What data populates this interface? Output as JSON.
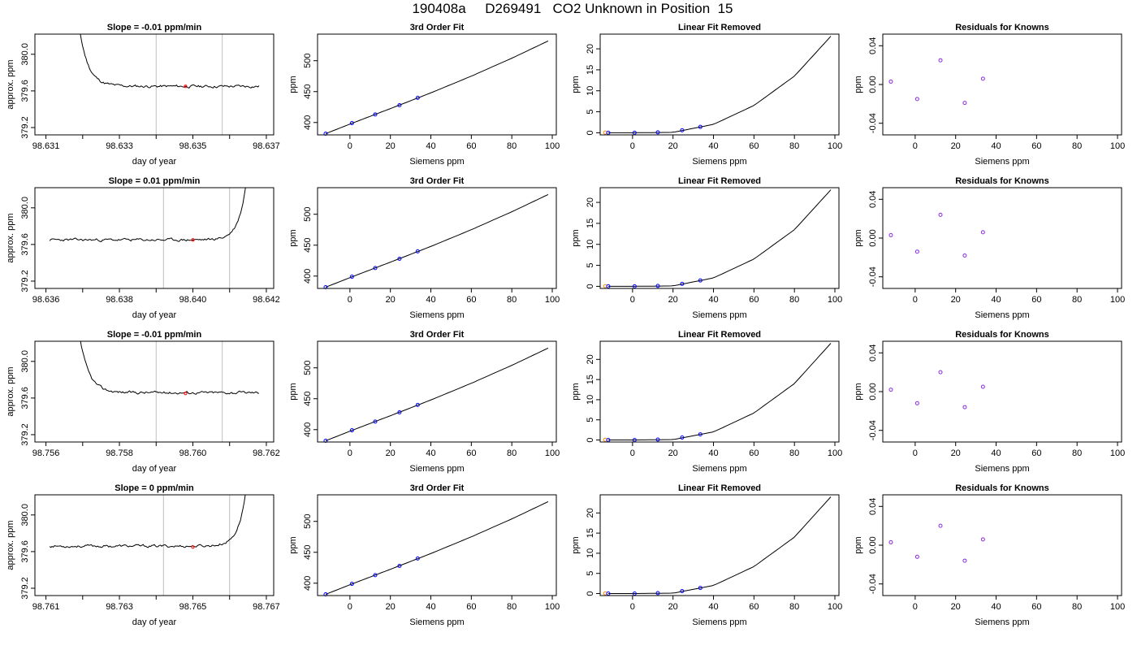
{
  "title": "190408a     D269491   CO2 Unknown in Position  15",
  "colors": {
    "line": "#000000",
    "known_point": "#0000ff",
    "residual_point": "#8a2be2",
    "unknown_point": "#ff0000",
    "standard_point": "#ff8c00",
    "vline": "#bebebe"
  },
  "chart_data": [
    {
      "type": "line",
      "row": 0,
      "title": "Slope =  -0.01  ppm/min",
      "xlabel": "day of year",
      "ylabel": "approx. ppm",
      "xlim": [
        98.6307,
        98.6372
      ],
      "ylim": [
        379.12,
        380.22
      ],
      "xticks": [
        98.631,
        98.632,
        98.633,
        98.634,
        98.635,
        98.636,
        98.637
      ],
      "xtick_labels": [
        "98.631",
        "",
        "98.633",
        "",
        "98.635",
        "",
        "98.637"
      ],
      "yticks": [
        379.2,
        379.6,
        380.0
      ],
      "ytick_labels": [
        "379.2",
        "379.6",
        "380.0"
      ],
      "vlines": [
        98.634,
        98.6358
      ],
      "unknown_point": {
        "x": 98.6348,
        "y": 379.65
      },
      "trace": {
        "start": 98.6315,
        "end": 98.6368,
        "spike": "start",
        "baseline": 379.65,
        "noise": 0.012,
        "seed": 11
      }
    },
    {
      "type": "scatter",
      "row": 0,
      "title": "3rd Order Fit",
      "xlabel": "Siemens ppm",
      "ylabel": "ppm",
      "xlim": [
        -16,
        102
      ],
      "ylim": [
        380,
        543
      ],
      "xticks": [
        0,
        20,
        40,
        60,
        80,
        100
      ],
      "yticks": [
        400,
        450,
        500
      ],
      "knowns": {
        "x": [
          -12,
          1,
          12.5,
          24.5,
          33.5
        ],
        "y": [
          382,
          399,
          413,
          428,
          440
        ]
      },
      "fit_curve": {
        "x": [
          -12,
          0,
          20,
          40,
          60,
          80,
          98
        ],
        "y": [
          382,
          397.5,
          422.5,
          448,
          475,
          504,
          532
        ]
      }
    },
    {
      "type": "scatter",
      "row": 0,
      "title": "Linear Fit Removed",
      "xlabel": "Siemens ppm",
      "ylabel": "ppm",
      "xlim": [
        -16,
        102
      ],
      "ylim": [
        -0.5,
        23.5
      ],
      "xticks": [
        0,
        20,
        40,
        60,
        80,
        100
      ],
      "yticks": [
        0,
        5,
        10,
        15,
        20
      ],
      "knowns": {
        "x": [
          -12,
          1,
          12.5,
          24.5,
          33.5
        ],
        "y": [
          0,
          0,
          0.1,
          0.6,
          1.4
        ]
      },
      "standard": {
        "x": -13.5,
        "y": 0.05
      },
      "fit_curve": {
        "x": [
          -12,
          0,
          20,
          40,
          60,
          80,
          98
        ],
        "y": [
          0,
          0,
          0.1,
          2,
          6.5,
          13.5,
          23
        ]
      }
    },
    {
      "type": "scatter",
      "row": 0,
      "title": "Residuals for Knowns",
      "xlabel": "Siemens ppm",
      "ylabel": "ppm",
      "xlim": [
        -16,
        102
      ],
      "ylim": [
        -0.052,
        0.052
      ],
      "xticks": [
        0,
        20,
        40,
        60,
        80,
        100
      ],
      "yticks": [
        -0.04,
        0,
        0.04
      ],
      "ytick_labels": [
        "-0.04",
        "0.00",
        "0.04"
      ],
      "knowns": {
        "x": [
          -12,
          1,
          12.5,
          24.5,
          33.5
        ],
        "y": [
          0.003,
          -0.015,
          0.025,
          -0.019,
          0.006
        ]
      }
    },
    {
      "type": "line",
      "row": 1,
      "title": "Slope =  0.01  ppm/min",
      "xlabel": "day of year",
      "ylabel": "approx. ppm",
      "xlim": [
        98.6357,
        98.6422
      ],
      "ylim": [
        379.12,
        380.22
      ],
      "xticks": [
        98.636,
        98.637,
        98.638,
        98.639,
        98.64,
        98.641,
        98.642
      ],
      "xtick_labels": [
        "98.636",
        "",
        "98.638",
        "",
        "98.640",
        "",
        "98.642"
      ],
      "yticks": [
        379.2,
        379.6,
        380.0
      ],
      "ytick_labels": [
        "379.2",
        "379.6",
        "380.0"
      ],
      "vlines": [
        98.6392,
        98.641
      ],
      "unknown_point": {
        "x": 98.64,
        "y": 379.65
      },
      "trace": {
        "start": 98.6361,
        "end": 98.6418,
        "spike": "end",
        "baseline": 379.65,
        "noise": 0.012,
        "seed": 23
      }
    },
    {
      "type": "scatter",
      "row": 1,
      "title": "3rd Order Fit",
      "xlabel": "Siemens ppm",
      "ylabel": "ppm",
      "xlim": [
        -16,
        102
      ],
      "ylim": [
        380,
        543
      ],
      "xticks": [
        0,
        20,
        40,
        60,
        80,
        100
      ],
      "yticks": [
        400,
        450,
        500
      ],
      "knowns": {
        "x": [
          -12,
          1,
          12.5,
          24.5,
          33.5
        ],
        "y": [
          382,
          399,
          413,
          428,
          440
        ]
      },
      "fit_curve": {
        "x": [
          -12,
          0,
          20,
          40,
          60,
          80,
          98
        ],
        "y": [
          382,
          397.5,
          422.5,
          448,
          475,
          504,
          532
        ]
      }
    },
    {
      "type": "scatter",
      "row": 1,
      "title": "Linear Fit Removed",
      "xlabel": "Siemens ppm",
      "ylabel": "ppm",
      "xlim": [
        -16,
        102
      ],
      "ylim": [
        -0.5,
        23.5
      ],
      "xticks": [
        0,
        20,
        40,
        60,
        80,
        100
      ],
      "yticks": [
        0,
        5,
        10,
        15,
        20
      ],
      "knowns": {
        "x": [
          -12,
          1,
          12.5,
          24.5,
          33.5
        ],
        "y": [
          0,
          0,
          0.1,
          0.6,
          1.4
        ]
      },
      "standard": {
        "x": -13.5,
        "y": 0.05
      },
      "fit_curve": {
        "x": [
          -12,
          0,
          20,
          40,
          60,
          80,
          98
        ],
        "y": [
          0,
          0,
          0.1,
          2,
          6.5,
          13.5,
          23
        ]
      }
    },
    {
      "type": "scatter",
      "row": 1,
      "title": "Residuals for Knowns",
      "xlabel": "Siemens ppm",
      "ylabel": "ppm",
      "xlim": [
        -16,
        102
      ],
      "ylim": [
        -0.052,
        0.052
      ],
      "xticks": [
        0,
        20,
        40,
        60,
        80,
        100
      ],
      "yticks": [
        -0.04,
        0,
        0.04
      ],
      "ytick_labels": [
        "-0.04",
        "0.00",
        "0.04"
      ],
      "knowns": {
        "x": [
          -12,
          1,
          12.5,
          24.5,
          33.5
        ],
        "y": [
          0.003,
          -0.014,
          0.024,
          -0.018,
          0.006
        ]
      }
    },
    {
      "type": "line",
      "row": 2,
      "title": "Slope =  -0.01  ppm/min",
      "xlabel": "day of year",
      "ylabel": "approx. ppm",
      "xlim": [
        98.7557,
        98.7622
      ],
      "ylim": [
        379.12,
        380.22
      ],
      "xticks": [
        98.756,
        98.757,
        98.758,
        98.759,
        98.76,
        98.761,
        98.762
      ],
      "xtick_labels": [
        "98.756",
        "",
        "98.758",
        "",
        "98.760",
        "",
        "98.762"
      ],
      "yticks": [
        379.2,
        379.6,
        380.0
      ],
      "ytick_labels": [
        "379.2",
        "379.6",
        "380.0"
      ],
      "vlines": [
        98.759,
        98.7608
      ],
      "unknown_point": {
        "x": 98.7598,
        "y": 379.65
      },
      "trace": {
        "start": 98.7565,
        "end": 98.7618,
        "spike": "start",
        "baseline": 379.66,
        "noise": 0.012,
        "seed": 37
      }
    },
    {
      "type": "scatter",
      "row": 2,
      "title": "3rd Order Fit",
      "xlabel": "Siemens ppm",
      "ylabel": "ppm",
      "xlim": [
        -16,
        102
      ],
      "ylim": [
        380,
        543
      ],
      "xticks": [
        0,
        20,
        40,
        60,
        80,
        100
      ],
      "yticks": [
        400,
        450,
        500
      ],
      "knowns": {
        "x": [
          -12,
          1,
          12.5,
          24.5,
          33.5
        ],
        "y": [
          382,
          399,
          413,
          428,
          440
        ]
      },
      "fit_curve": {
        "x": [
          -12,
          0,
          20,
          40,
          60,
          80,
          98
        ],
        "y": [
          382,
          397.5,
          422.5,
          448,
          475,
          504,
          532
        ]
      }
    },
    {
      "type": "scatter",
      "row": 2,
      "title": "Linear Fit Removed",
      "xlabel": "Siemens ppm",
      "ylabel": "ppm",
      "xlim": [
        -16,
        102
      ],
      "ylim": [
        -0.5,
        24.5
      ],
      "xticks": [
        0,
        20,
        40,
        60,
        80,
        100
      ],
      "yticks": [
        0,
        5,
        10,
        15,
        20
      ],
      "knowns": {
        "x": [
          -12,
          1,
          12.5,
          24.5,
          33.5
        ],
        "y": [
          0,
          0,
          0.1,
          0.6,
          1.4
        ]
      },
      "standard": {
        "x": -13.5,
        "y": 0.05
      },
      "fit_curve": {
        "x": [
          -12,
          0,
          20,
          40,
          60,
          80,
          98
        ],
        "y": [
          0,
          0,
          0.1,
          2,
          6.7,
          14,
          24
        ]
      }
    },
    {
      "type": "scatter",
      "row": 2,
      "title": "Residuals for Knowns",
      "xlabel": "Siemens ppm",
      "ylabel": "ppm",
      "xlim": [
        -16,
        102
      ],
      "ylim": [
        -0.052,
        0.052
      ],
      "xticks": [
        0,
        20,
        40,
        60,
        80,
        100
      ],
      "yticks": [
        -0.04,
        0,
        0.04
      ],
      "ytick_labels": [
        "-0.04",
        "0.00",
        "0.04"
      ],
      "knowns": {
        "x": [
          -12,
          1,
          12.5,
          24.5,
          33.5
        ],
        "y": [
          0.002,
          -0.012,
          0.02,
          -0.016,
          0.005
        ]
      }
    },
    {
      "type": "line",
      "row": 3,
      "title": "Slope =  0  ppm/min",
      "xlabel": "day of year",
      "ylabel": "approx. ppm",
      "xlim": [
        98.7607,
        98.7672
      ],
      "ylim": [
        379.12,
        380.22
      ],
      "xticks": [
        98.761,
        98.762,
        98.763,
        98.764,
        98.765,
        98.766,
        98.767
      ],
      "xtick_labels": [
        "98.761",
        "",
        "98.763",
        "",
        "98.765",
        "",
        "98.767"
      ],
      "yticks": [
        379.2,
        379.6,
        380.0
      ],
      "ytick_labels": [
        "379.2",
        "379.6",
        "380.0"
      ],
      "vlines": [
        98.7642,
        98.766
      ],
      "unknown_point": {
        "x": 98.765,
        "y": 379.65
      },
      "trace": {
        "start": 98.7611,
        "end": 98.7668,
        "spike": "end",
        "baseline": 379.66,
        "noise": 0.012,
        "seed": 53
      }
    },
    {
      "type": "scatter",
      "row": 3,
      "title": "3rd Order Fit",
      "xlabel": "Siemens ppm",
      "ylabel": "ppm",
      "xlim": [
        -16,
        102
      ],
      "ylim": [
        380,
        543
      ],
      "xticks": [
        0,
        20,
        40,
        60,
        80,
        100
      ],
      "yticks": [
        400,
        450,
        500
      ],
      "knowns": {
        "x": [
          -12,
          1,
          12.5,
          24.5,
          33.5
        ],
        "y": [
          382,
          399,
          413,
          428,
          440
        ]
      },
      "fit_curve": {
        "x": [
          -12,
          0,
          20,
          40,
          60,
          80,
          98
        ],
        "y": [
          382,
          397.5,
          422.5,
          448,
          475,
          504,
          532
        ]
      }
    },
    {
      "type": "scatter",
      "row": 3,
      "title": "Linear Fit Removed",
      "xlabel": "Siemens ppm",
      "ylabel": "ppm",
      "xlim": [
        -16,
        102
      ],
      "ylim": [
        -0.5,
        24.5
      ],
      "xticks": [
        0,
        20,
        40,
        60,
        80,
        100
      ],
      "yticks": [
        0,
        5,
        10,
        15,
        20
      ],
      "knowns": {
        "x": [
          -12,
          1,
          12.5,
          24.5,
          33.5
        ],
        "y": [
          0,
          0,
          0.1,
          0.6,
          1.4
        ]
      },
      "standard": {
        "x": -13.5,
        "y": 0.05
      },
      "fit_curve": {
        "x": [
          -12,
          0,
          20,
          40,
          60,
          80,
          98
        ],
        "y": [
          0,
          0,
          0.1,
          2,
          6.7,
          14,
          24
        ]
      }
    },
    {
      "type": "scatter",
      "row": 3,
      "title": "Residuals for Knowns",
      "xlabel": "Siemens ppm",
      "ylabel": "ppm",
      "xlim": [
        -16,
        102
      ],
      "ylim": [
        -0.052,
        0.052
      ],
      "xticks": [
        0,
        20,
        40,
        60,
        80,
        100
      ],
      "yticks": [
        -0.04,
        0,
        0.04
      ],
      "ytick_labels": [
        "-0.04",
        "0.00",
        "0.04"
      ],
      "knowns": {
        "x": [
          -12,
          1,
          12.5,
          24.5,
          33.5
        ],
        "y": [
          0.003,
          -0.012,
          0.02,
          -0.016,
          0.006
        ]
      }
    }
  ]
}
